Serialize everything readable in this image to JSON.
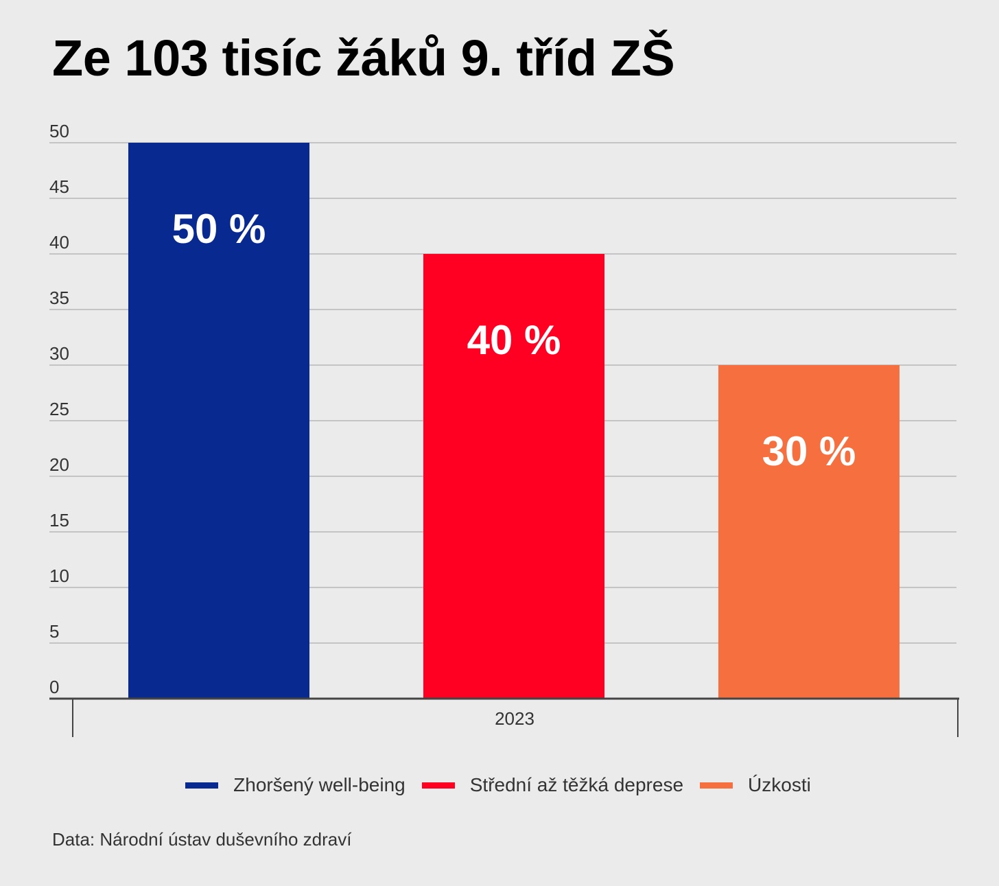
{
  "chart_data": {
    "type": "bar",
    "title": "Ze 103 tisíc žáků 9. tříd ZŠ",
    "categories": [
      "2023"
    ],
    "series": [
      {
        "name": "Zhoršený well-being",
        "values": [
          50
        ],
        "label": "50 %",
        "color": "#08298f"
      },
      {
        "name": "Střední až těžká deprese",
        "values": [
          40
        ],
        "label": "40 %",
        "color": "#ff0022"
      },
      {
        "name": "Úzkosti",
        "values": [
          30
        ],
        "label": "30 %",
        "color": "#f5703e"
      }
    ],
    "ylim": [
      0,
      50
    ],
    "yticks": [
      "0",
      "5",
      "10",
      "15",
      "20",
      "25",
      "30",
      "35",
      "40",
      "45",
      "50"
    ],
    "grid": true,
    "legend_position": "bottom",
    "source": "Data: Národní ústav duševního zdraví"
  }
}
